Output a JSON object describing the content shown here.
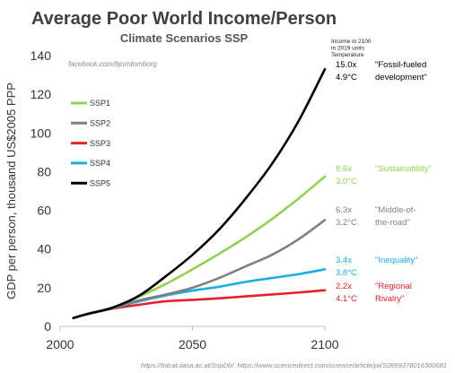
{
  "chart_data": {
    "type": "line",
    "title": "Average Poor World Income/Person",
    "subtitle": "Climate Scenarios SSP",
    "ylabel": "GDP per person, thousand US$2005 PPP",
    "xlabel": "",
    "xlim": [
      2000,
      2100
    ],
    "ylim": [
      0,
      140
    ],
    "xticks": [
      2000,
      2050,
      2100
    ],
    "yticks": [
      0,
      20,
      40,
      60,
      80,
      100,
      120,
      140
    ],
    "grid": false,
    "legend_position": "left",
    "watermark": "facebook.com/bjornlomborg",
    "source": "https://tntcat.iiasa.ac.at/SspDb/, https://www.sciencedirect.com/science/article/pii/S0959378016300681",
    "header_note": [
      "Income in 2100",
      "in 2019 units",
      "Temperature"
    ],
    "series": [
      {
        "name": "SSP1",
        "color": "#92D050",
        "x": [
          2005,
          2010,
          2020,
          2030,
          2040,
          2050,
          2060,
          2070,
          2080,
          2090,
          2100
        ],
        "values": [
          4.3,
          6.3,
          9.8,
          15.5,
          22,
          29.5,
          37.5,
          46,
          55.5,
          66,
          77.5
        ],
        "annotation": {
          "multiple": "8.6x",
          "temperature": "3.0°C",
          "label": [
            "\"Sustainability\""
          ]
        }
      },
      {
        "name": "SSP2",
        "color": "#7F7F7F",
        "x": [
          2005,
          2010,
          2020,
          2030,
          2040,
          2050,
          2060,
          2070,
          2080,
          2090,
          2100
        ],
        "values": [
          4.3,
          6.3,
          9.6,
          13.5,
          16.5,
          20,
          25,
          31,
          37,
          45,
          55
        ],
        "annotation": {
          "multiple": "6.3x",
          "temperature": "3.2°C",
          "label": [
            "\"Middle-of-",
            "the-road\""
          ]
        }
      },
      {
        "name": "SSP3",
        "color": "#E8202A",
        "x": [
          2005,
          2010,
          2020,
          2030,
          2040,
          2050,
          2060,
          2070,
          2080,
          2090,
          2100
        ],
        "values": [
          4.3,
          6.2,
          9.2,
          11.2,
          13,
          13.7,
          14.5,
          15.5,
          16.5,
          17.5,
          18.7
        ],
        "annotation": {
          "multiple": "2.2x",
          "temperature": "4.1°C",
          "label": [
            "\"Regional",
            "Rivalry\""
          ]
        }
      },
      {
        "name": "SSP4",
        "color": "#1AADE3",
        "x": [
          2005,
          2010,
          2020,
          2030,
          2040,
          2050,
          2060,
          2070,
          2080,
          2090,
          2100
        ],
        "values": [
          4.3,
          6.3,
          9.5,
          13,
          16,
          18.5,
          20.5,
          23,
          25,
          27,
          29.5
        ],
        "annotation": {
          "multiple": "3.4x",
          "temperature": "3.8°C",
          "label": [
            "\"Inequality\""
          ]
        }
      },
      {
        "name": "SSP5",
        "color": "#000000",
        "x": [
          2005,
          2010,
          2020,
          2030,
          2040,
          2050,
          2060,
          2070,
          2080,
          2090,
          2100
        ],
        "values": [
          4.3,
          6.3,
          9.8,
          16,
          26,
          37,
          50,
          66,
          84,
          106,
          133
        ],
        "annotation": {
          "multiple": "15.0x",
          "temperature": "4.9°C",
          "label": [
            "\"Fossil-fueled",
            "development\""
          ]
        }
      }
    ]
  }
}
